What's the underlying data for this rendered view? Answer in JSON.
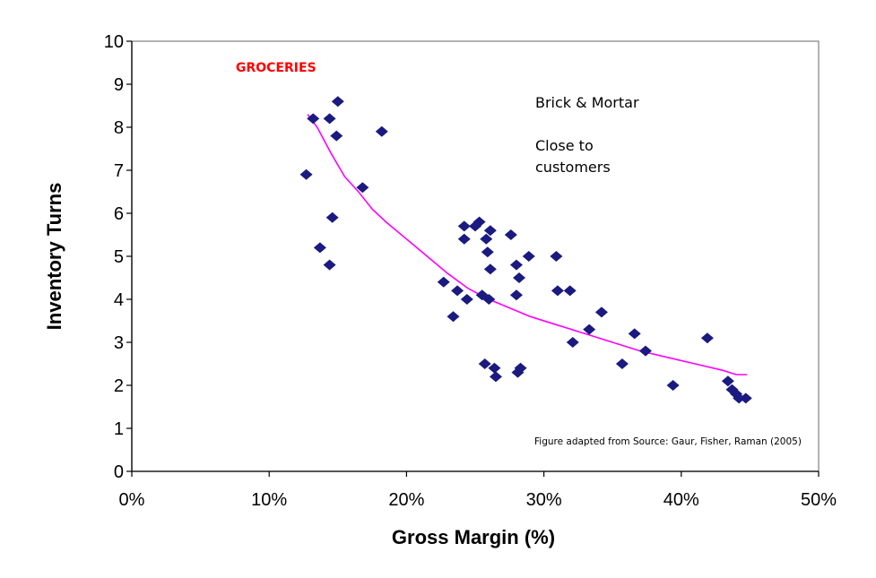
{
  "chart_data": {
    "type": "scatter",
    "xlabel": "Gross Margin (%)",
    "ylabel": "Inventory Turns",
    "xlim": [
      0,
      50
    ],
    "ylim": [
      0,
      10
    ],
    "x_ticks": [
      0,
      10,
      20,
      30,
      40,
      50
    ],
    "x_tick_labels": [
      "0%",
      "10%",
      "20%",
      "30%",
      "40%",
      "50%"
    ],
    "y_ticks": [
      0,
      1,
      2,
      3,
      4,
      5,
      6,
      7,
      8,
      9,
      10
    ],
    "y_tick_labels": [
      "0",
      "1",
      "2",
      "3",
      "4",
      "5",
      "6",
      "7",
      "8",
      "9",
      "10"
    ],
    "grid": false,
    "colors": {
      "points": "#1a1a80",
      "trend": "#ff00ff",
      "category_label": "#ff0000",
      "frame": "#808080"
    },
    "annotations": {
      "category": "GROCERIES",
      "line1": "Brick & Mortar",
      "line2": "Close to",
      "line3": "customers",
      "source": "Figure adapted from Source: Gaur, Fisher, Raman (2005)"
    },
    "points": [
      {
        "x": 12.7,
        "y": 6.9
      },
      {
        "x": 13.2,
        "y": 8.2
      },
      {
        "x": 13.7,
        "y": 5.2
      },
      {
        "x": 14.4,
        "y": 8.2
      },
      {
        "x": 14.4,
        "y": 4.8
      },
      {
        "x": 14.6,
        "y": 5.9
      },
      {
        "x": 14.9,
        "y": 7.8
      },
      {
        "x": 15.0,
        "y": 8.6
      },
      {
        "x": 16.8,
        "y": 6.6
      },
      {
        "x": 18.2,
        "y": 7.9
      },
      {
        "x": 22.7,
        "y": 4.4
      },
      {
        "x": 23.4,
        "y": 3.6
      },
      {
        "x": 23.7,
        "y": 4.2
      },
      {
        "x": 24.2,
        "y": 5.7
      },
      {
        "x": 24.2,
        "y": 5.4
      },
      {
        "x": 24.4,
        "y": 4.0
      },
      {
        "x": 25.0,
        "y": 5.7
      },
      {
        "x": 25.3,
        "y": 5.8
      },
      {
        "x": 25.5,
        "y": 4.1
      },
      {
        "x": 25.7,
        "y": 2.5
      },
      {
        "x": 25.8,
        "y": 5.4
      },
      {
        "x": 25.9,
        "y": 5.1
      },
      {
        "x": 26.0,
        "y": 4.0
      },
      {
        "x": 26.1,
        "y": 5.6
      },
      {
        "x": 26.1,
        "y": 4.7
      },
      {
        "x": 26.4,
        "y": 2.4
      },
      {
        "x": 26.5,
        "y": 2.2
      },
      {
        "x": 27.6,
        "y": 5.5
      },
      {
        "x": 28.0,
        "y": 4.8
      },
      {
        "x": 28.0,
        "y": 4.1
      },
      {
        "x": 28.1,
        "y": 2.3
      },
      {
        "x": 28.2,
        "y": 4.5
      },
      {
        "x": 28.3,
        "y": 2.4
      },
      {
        "x": 28.9,
        "y": 5.0
      },
      {
        "x": 30.9,
        "y": 5.0
      },
      {
        "x": 31.0,
        "y": 4.2
      },
      {
        "x": 31.9,
        "y": 4.2
      },
      {
        "x": 32.1,
        "y": 3.0
      },
      {
        "x": 33.3,
        "y": 3.3
      },
      {
        "x": 34.2,
        "y": 3.7
      },
      {
        "x": 35.7,
        "y": 2.5
      },
      {
        "x": 36.6,
        "y": 3.2
      },
      {
        "x": 37.4,
        "y": 2.8
      },
      {
        "x": 39.4,
        "y": 2.0
      },
      {
        "x": 41.9,
        "y": 3.1
      },
      {
        "x": 43.4,
        "y": 2.1
      },
      {
        "x": 43.7,
        "y": 1.9
      },
      {
        "x": 44.0,
        "y": 1.8
      },
      {
        "x": 44.2,
        "y": 1.7
      },
      {
        "x": 44.7,
        "y": 1.7
      }
    ],
    "trendline": [
      {
        "x": 12.8,
        "y": 8.3
      },
      {
        "x": 13.5,
        "y": 8.0
      },
      {
        "x": 14.5,
        "y": 7.4
      },
      {
        "x": 15.5,
        "y": 6.85
      },
      {
        "x": 16.5,
        "y": 6.5
      },
      {
        "x": 17.5,
        "y": 6.1
      },
      {
        "x": 18.5,
        "y": 5.8
      },
      {
        "x": 20.0,
        "y": 5.4
      },
      {
        "x": 21.5,
        "y": 5.0
      },
      {
        "x": 23.0,
        "y": 4.6
      },
      {
        "x": 24.5,
        "y": 4.25
      },
      {
        "x": 26.0,
        "y": 4.0
      },
      {
        "x": 27.5,
        "y": 3.8
      },
      {
        "x": 29.0,
        "y": 3.6
      },
      {
        "x": 31.0,
        "y": 3.4
      },
      {
        "x": 33.0,
        "y": 3.2
      },
      {
        "x": 35.0,
        "y": 3.0
      },
      {
        "x": 37.0,
        "y": 2.8
      },
      {
        "x": 39.0,
        "y": 2.65
      },
      {
        "x": 41.0,
        "y": 2.5
      },
      {
        "x": 43.0,
        "y": 2.35
      },
      {
        "x": 44.0,
        "y": 2.25
      },
      {
        "x": 44.8,
        "y": 2.25
      }
    ]
  }
}
